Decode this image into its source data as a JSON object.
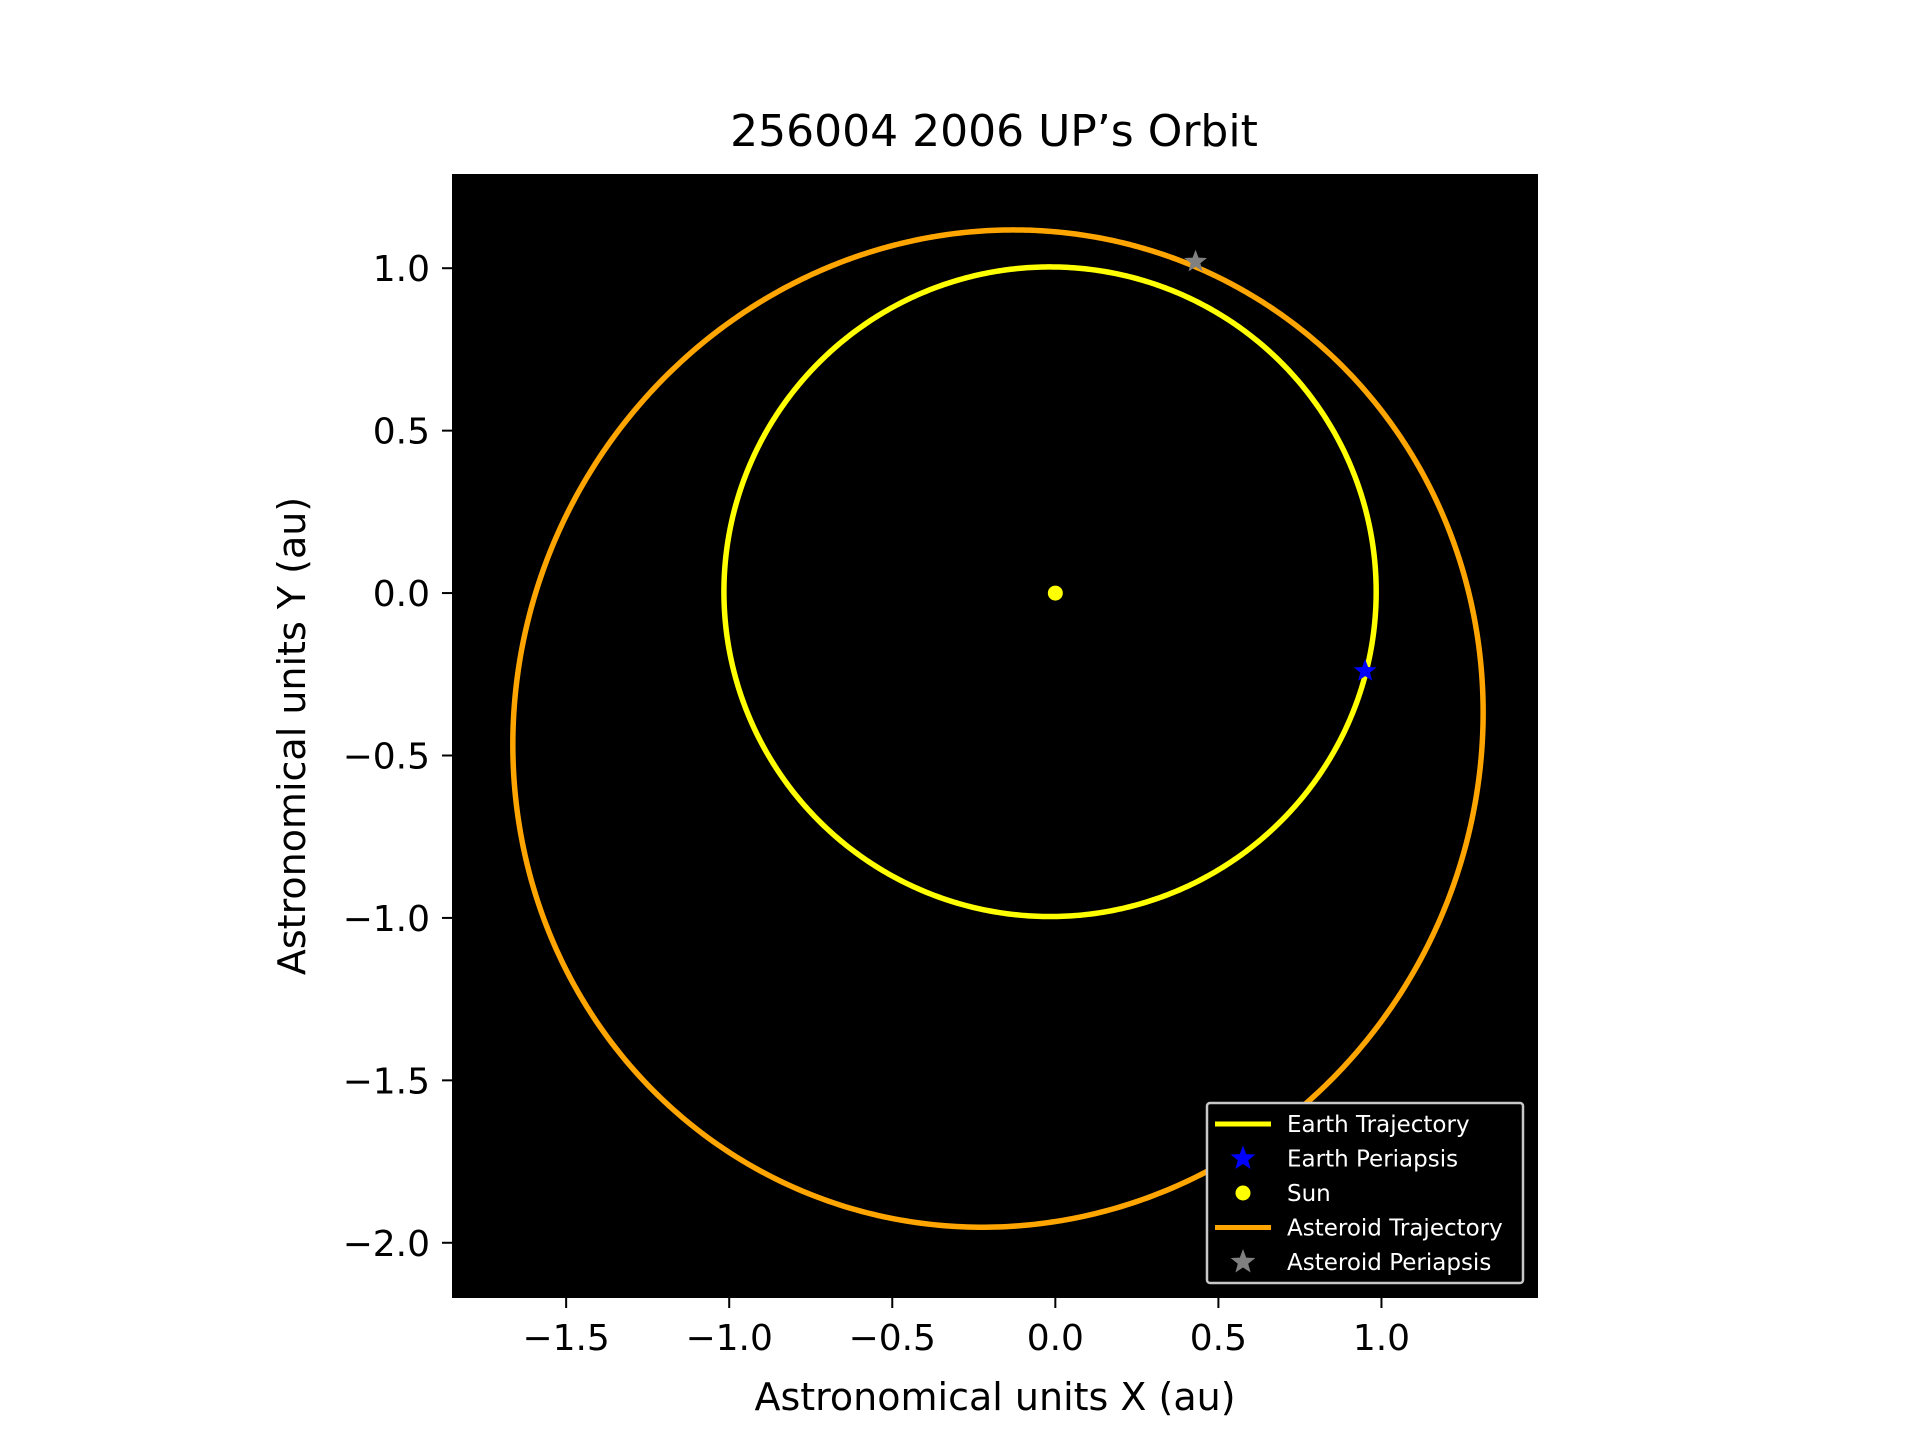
{
  "chart_data": {
    "type": "line",
    "title": "256004 2006 UP’s Orbit",
    "xlabel": "Astronomical units X (au)",
    "ylabel": "Astronomical units Y (au)",
    "xlim": [
      -1.85,
      1.48
    ],
    "ylim": [
      -2.17,
      1.29
    ],
    "xticks": [
      -1.5,
      -1.0,
      -0.5,
      0.0,
      0.5,
      1.0
    ],
    "xtick_labels": [
      "−1.5",
      "−1.0",
      "−0.5",
      "0.0",
      "0.5",
      "1.0"
    ],
    "yticks": [
      1.0,
      0.5,
      0.0,
      -0.5,
      -1.0,
      -1.5,
      -2.0
    ],
    "ytick_labels": [
      "1.0",
      "0.5",
      "0.0",
      "−0.5",
      "−1.0",
      "−1.5",
      "−2.0"
    ],
    "grid": false,
    "plot_background": "#000000",
    "legend_position": "lower-right",
    "series": [
      {
        "name": "Earth Trajectory",
        "kind": "orbit",
        "color": "#ffff00",
        "orbit": {
          "a": 1.0,
          "e": 0.0167,
          "periapsis_x": 0.95,
          "periapsis_y": -0.24
        }
      },
      {
        "name": "Earth Periapsis",
        "kind": "star",
        "color": "#0000ff",
        "x": [
          0.95
        ],
        "y": [
          -0.24
        ]
      },
      {
        "name": "Sun",
        "kind": "dot",
        "color": "#ffff00",
        "x": [
          0.0
        ],
        "y": [
          0.0
        ]
      },
      {
        "name": "Asteroid Trajectory",
        "kind": "orbit",
        "color": "#ffa500",
        "orbit": {
          "a": 1.545,
          "e": 0.293,
          "periapsis_x": 0.43,
          "periapsis_y": 1.02
        }
      },
      {
        "name": "Asteroid Periapsis",
        "kind": "star",
        "color": "#808080",
        "x": [
          0.43
        ],
        "y": [
          1.02
        ]
      }
    ]
  }
}
